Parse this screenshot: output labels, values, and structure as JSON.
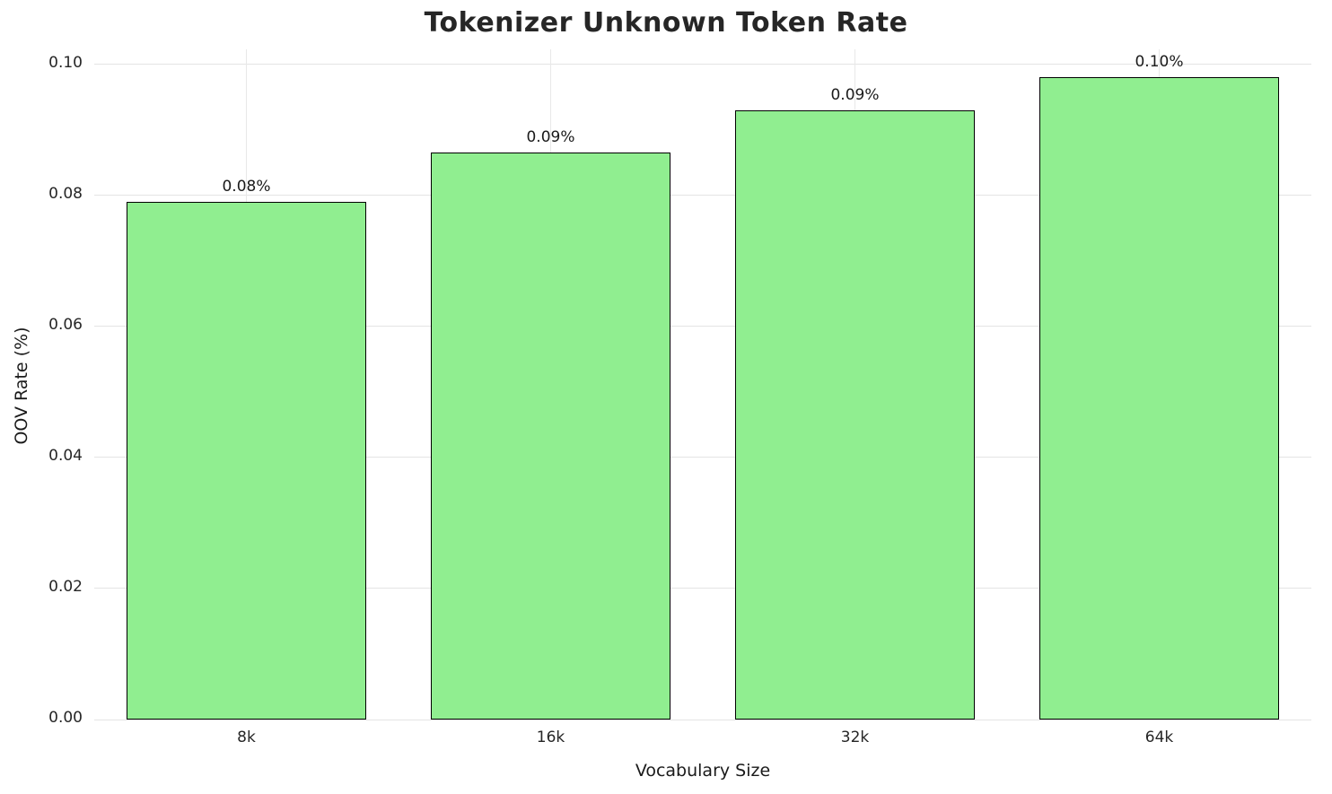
{
  "chart_data": {
    "type": "bar",
    "title": "Tokenizer Unknown Token Rate",
    "xlabel": "Vocabulary Size",
    "ylabel": "OOV Rate (%)",
    "categories": [
      "8k",
      "16k",
      "32k",
      "64k"
    ],
    "values": [
      0.079,
      0.0865,
      0.093,
      0.098
    ],
    "bar_labels": [
      "0.08%",
      "0.09%",
      "0.09%",
      "0.10%"
    ],
    "ylim": [
      0,
      0.1
    ],
    "yticks": [
      0.0,
      0.02,
      0.04,
      0.06,
      0.08,
      0.1
    ],
    "ytick_labels": [
      "0.00",
      "0.02",
      "0.04",
      "0.06",
      "0.08",
      "0.10"
    ],
    "grid": true,
    "legend": "none",
    "bar_color": "#90EE90",
    "bar_edge_color": "#000000"
  }
}
